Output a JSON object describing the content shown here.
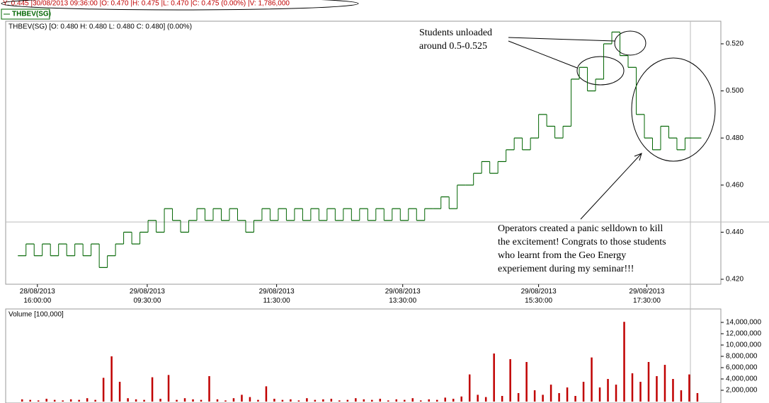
{
  "info_bar": "Y: 0.445 |30/08/2013 09:36:00 |O: 0.470 |H: 0.475 |L: 0.470 |C: 0.475 (0.00%) |V: 1,786,000",
  "chart_data": [
    {
      "type": "step",
      "subtitle": "THBEV(SG) [O: 0.480  H: 0.480  L: 0.480  C: 0.480] (0.00%)",
      "series": [
        {
          "name": "THBEV(SG)",
          "color": "#006400",
          "values": [
            0.43,
            0.435,
            0.43,
            0.435,
            0.43,
            0.435,
            0.43,
            0.435,
            0.43,
            0.435,
            0.425,
            0.43,
            0.435,
            0.44,
            0.435,
            0.44,
            0.445,
            0.44,
            0.45,
            0.445,
            0.44,
            0.445,
            0.45,
            0.445,
            0.45,
            0.445,
            0.45,
            0.445,
            0.44,
            0.445,
            0.45,
            0.445,
            0.45,
            0.445,
            0.45,
            0.445,
            0.45,
            0.445,
            0.45,
            0.445,
            0.45,
            0.445,
            0.45,
            0.445,
            0.45,
            0.445,
            0.45,
            0.445,
            0.45,
            0.445,
            0.45,
            0.45,
            0.455,
            0.45,
            0.46,
            0.46,
            0.465,
            0.47,
            0.465,
            0.47,
            0.475,
            0.48,
            0.475,
            0.48,
            0.49,
            0.485,
            0.48,
            0.485,
            0.505,
            0.51,
            0.5,
            0.505,
            0.52,
            0.525,
            0.515,
            0.51,
            0.49,
            0.48,
            0.475,
            0.485,
            0.48,
            0.475,
            0.48,
            0.48
          ]
        }
      ],
      "xlim": [
        -1.5,
        86.4
      ],
      "xticks": [
        {
          "value": 2.4,
          "label": "28/08/2013\n16:00:00"
        },
        {
          "value": 15.9,
          "label": "29/08/2013\n09:30:00"
        },
        {
          "value": 31.8,
          "label": "29/08/2013\n11:30:00"
        },
        {
          "value": 47.3,
          "label": "29/08/2013\n13:30:00"
        },
        {
          "value": 64,
          "label": "29/08/2013\n15:30:00"
        },
        {
          "value": 77.3,
          "label": "29/08/2013\n17:30:00"
        }
      ],
      "ylim": [
        0.4179,
        0.5296
      ],
      "yticks": [
        {
          "value": 0.42,
          "label": "0.420"
        },
        {
          "value": 0.44,
          "label": "0.440"
        },
        {
          "value": 0.46,
          "label": "0.460"
        },
        {
          "value": 0.48,
          "label": "0.480"
        },
        {
          "value": 0.5,
          "label": "0.500"
        },
        {
          "value": 0.52,
          "label": "0.520"
        }
      ],
      "annotations": [
        "Students unloaded\naround 0.5-0.525",
        "Operators created a panic selldown to kill the excitement! Congrats to those students who learnt from the Geo Energy experiement during my seminar!!!"
      ]
    },
    {
      "type": "bar",
      "subtitle": "Volume [100,000]",
      "color": "#c00000",
      "values": [
        400000,
        300000,
        200000,
        500000,
        300000,
        200000,
        400000,
        300000,
        600000,
        300000,
        4200000,
        8000000,
        3500000,
        600000,
        400000,
        300000,
        4300000,
        500000,
        4700000,
        300000,
        600000,
        400000,
        300000,
        4500000,
        400000,
        200000,
        600000,
        1200000,
        800000,
        300000,
        2700000,
        500000,
        300000,
        400000,
        200000,
        600000,
        300000,
        400000,
        500000,
        200000,
        300000,
        600000,
        400000,
        300000,
        500000,
        200000,
        400000,
        300000,
        600000,
        200000,
        400000,
        300000,
        700000,
        500000,
        900000,
        4800000,
        1200000,
        800000,
        8500000,
        1000000,
        7500000,
        1500000,
        7000000,
        2000000,
        1200000,
        3000000,
        1500000,
        2500000,
        1000000,
        3500000,
        7800000,
        2500000,
        4000000,
        3000000,
        14100000,
        5000000,
        3500000,
        7000000,
        4500000,
        6500000,
        4000000,
        2000000,
        4800000,
        1500000
      ],
      "xlim": [
        -1.5,
        86.4
      ],
      "ylim": [
        0,
        16250000
      ],
      "yticks": [
        {
          "value": 2000000,
          "label": "2,000,000"
        },
        {
          "value": 4000000,
          "label": "4,000,000"
        },
        {
          "value": 6000000,
          "label": "6,000,000"
        },
        {
          "value": 8000000,
          "label": "8,000,000"
        },
        {
          "value": 10000000,
          "label": "10,000,000"
        },
        {
          "value": 12000000,
          "label": "12,000,000"
        },
        {
          "value": 14000000,
          "label": "14,000,000"
        }
      ]
    }
  ]
}
